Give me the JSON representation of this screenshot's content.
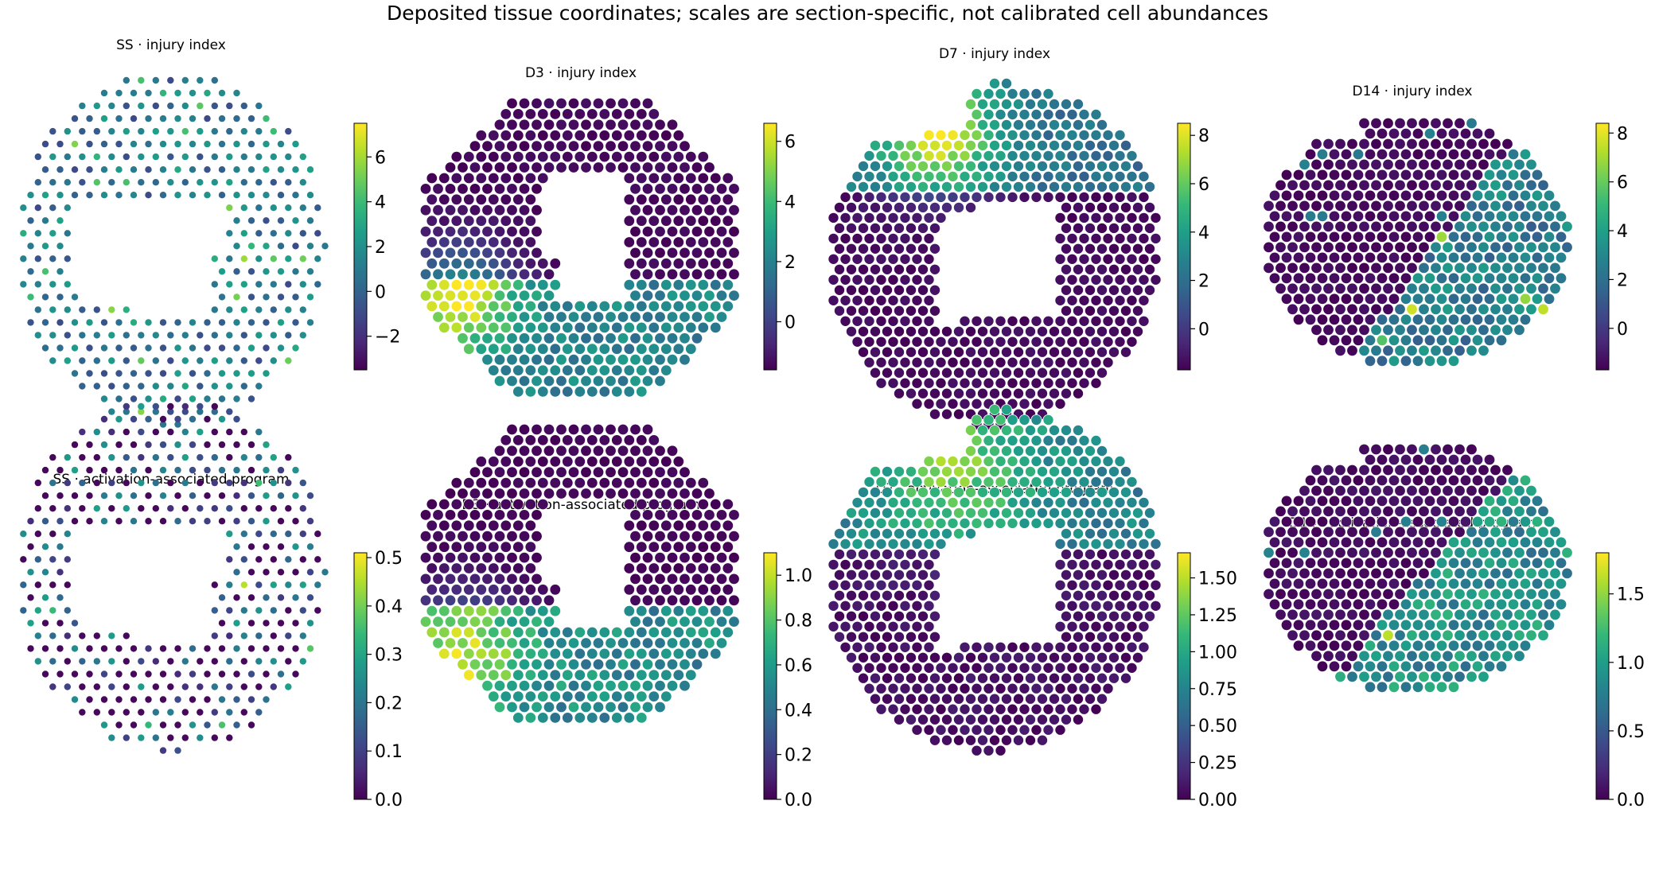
{
  "figure": {
    "suptitle": "Deposited tissue coordinates; scales are section-specific, not calibrated cell abundances"
  },
  "colormap": {
    "name": "viridis",
    "stops": [
      "#440154",
      "#482878",
      "#3e4989",
      "#31688e",
      "#26828e",
      "#1f9e89",
      "#35b779",
      "#6ece58",
      "#b5de2b",
      "#fde725"
    ]
  },
  "chart_data": [
    {
      "type": "scatter",
      "section": "SS",
      "metric": "injury index",
      "title": "SS · injury index",
      "clim": [
        -3.5,
        7.5
      ],
      "ticks": [
        -2,
        0,
        2,
        4,
        6
      ],
      "tick_labels": [
        "−2",
        "0",
        "2",
        "4",
        "6"
      ],
      "shape": "ss",
      "pattern": "ss_injury"
    },
    {
      "type": "scatter",
      "section": "D3",
      "metric": "injury index",
      "title": "D3 · injury index",
      "clim": [
        -1.6,
        6.6
      ],
      "ticks": [
        0,
        2,
        4,
        6
      ],
      "tick_labels": [
        "0",
        "2",
        "4",
        "6"
      ],
      "shape": "d3",
      "pattern": "d3_injury"
    },
    {
      "type": "scatter",
      "section": "D7",
      "metric": "injury index",
      "title": "D7 · injury index",
      "clim": [
        -1.7,
        8.5
      ],
      "ticks": [
        0,
        2,
        4,
        6,
        8
      ],
      "tick_labels": [
        "0",
        "2",
        "4",
        "6",
        "8"
      ],
      "shape": "d7",
      "pattern": "d7_injury"
    },
    {
      "type": "scatter",
      "section": "D14",
      "metric": "injury index",
      "title": "D14 · injury index",
      "clim": [
        -1.7,
        8.4
      ],
      "ticks": [
        0,
        2,
        4,
        6,
        8
      ],
      "tick_labels": [
        "0",
        "2",
        "4",
        "6",
        "8"
      ],
      "shape": "d14",
      "pattern": "d14_injury"
    },
    {
      "type": "scatter",
      "section": "SS",
      "metric": "activation-associated program",
      "title": "SS · activation-associated program",
      "clim": [
        0,
        0.51
      ],
      "ticks": [
        0,
        0.1,
        0.2,
        0.3,
        0.4,
        0.5
      ],
      "tick_labels": [
        "0.0",
        "0.1",
        "0.2",
        "0.3",
        "0.4",
        "0.5"
      ],
      "shape": "ss",
      "pattern": "ss_act"
    },
    {
      "type": "scatter",
      "section": "D3",
      "metric": "activation-associated program",
      "title": "D3 · activation-associated program",
      "clim": [
        0,
        1.1
      ],
      "ticks": [
        0,
        0.2,
        0.4,
        0.6,
        0.8,
        1.0
      ],
      "tick_labels": [
        "0.0",
        "0.2",
        "0.4",
        "0.6",
        "0.8",
        "1.0"
      ],
      "shape": "d3",
      "pattern": "d3_act"
    },
    {
      "type": "scatter",
      "section": "D7",
      "metric": "activation-associated program",
      "title": "D7 · activation-associated program",
      "clim": [
        0,
        1.67
      ],
      "ticks": [
        0,
        0.25,
        0.5,
        0.75,
        1.0,
        1.25,
        1.5
      ],
      "tick_labels": [
        "0.00",
        "0.25",
        "0.50",
        "0.75",
        "1.00",
        "1.25",
        "1.50"
      ],
      "shape": "d7",
      "pattern": "d7_act"
    },
    {
      "type": "scatter",
      "section": "D14",
      "metric": "activation-associated program",
      "title": "D14 · activation-associated program",
      "clim": [
        0,
        1.8
      ],
      "ticks": [
        0,
        0.5,
        1.0,
        1.5
      ],
      "tick_labels": [
        "0.0",
        "0.5",
        "1.0",
        "1.5"
      ],
      "shape": "d14",
      "pattern": "d14_act"
    }
  ]
}
